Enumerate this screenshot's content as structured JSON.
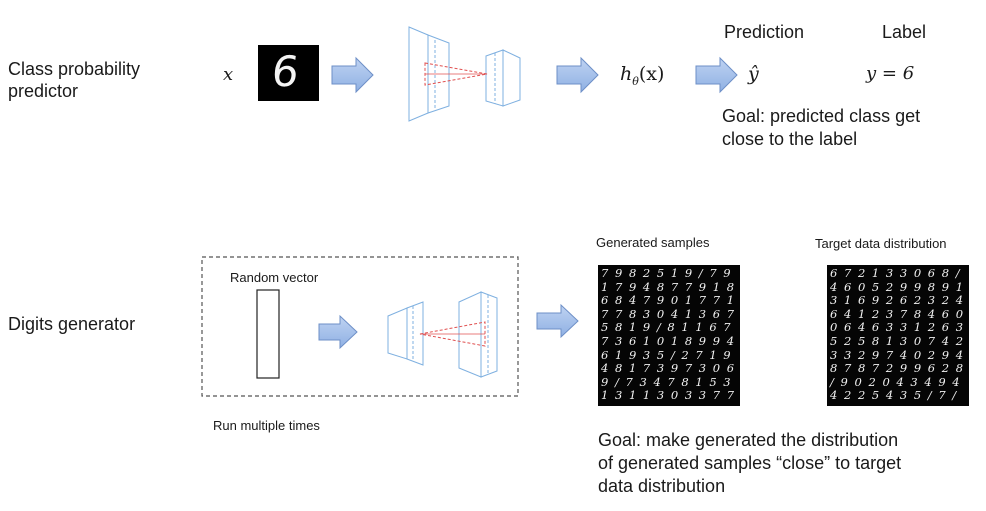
{
  "top": {
    "row_label": [
      "Class probability",
      "predictor"
    ],
    "input_symbol": "x",
    "input_digit": "6",
    "h_symbol": "h",
    "h_subscript": "θ",
    "h_arg": "(x)",
    "prediction_header": "Prediction",
    "prediction_symbol": "ŷ",
    "label_header": "Label",
    "label_value": "y = 6",
    "goal": [
      "Goal: predicted class get",
      "close to the label"
    ]
  },
  "bottom": {
    "row_label": "Digits generator",
    "random_vector_label": "Random vector",
    "run_label": "Run multiple times",
    "generated_title": "Generated samples",
    "target_title": "Target data distribution",
    "goal": [
      "Goal: make generated the distribution",
      "of generated samples “close” to target",
      "data distribution"
    ]
  },
  "generated_grid": [
    "7 9 8 2 5 1 9 / 7 9",
    "1 7 9 4 8 7 7 9 1 8",
    "6 8 4 7 9 0 1 7 7 1",
    "7 7 8 3 0 4 1 3 6 7",
    "5 8 1 9 / 8 1 1 6 7",
    "7 3 6 1 0 1 8 9 9 4",
    "6 1 9 3 5 / 2 7 1 9",
    "4 8 1 7 3 9 7 3 0 6",
    "9 / 7 3 4 7 8 1 5 3",
    "1 3 1 1 3 0 3 3 7 7"
  ],
  "target_grid": [
    "6 7 2 1 3 3 0 6 8 /",
    "4 6 0 5 2 9 9 8 9 1",
    "3 1 6 9 2 6 2 3 2 4",
    "6 4 1 2 3 7 8 4 6 0",
    "0 6 4 6 3 3 1 2 6 3",
    "5 2 5 8 1 3 0 7 4 2",
    "3 3 2 9 7 4 0 2 9 4",
    "8 7 8 7 2 9 9 6 2 8",
    "/ 9 0 2 0 4 3 4 9 4",
    "4 2 2 5 4 3 5 / 7 /"
  ],
  "colors": {
    "arrow_fill": "#a9c3ea",
    "arrow_stroke": "#6d8fc7",
    "net_stroke": "#7fb0e0",
    "red_dash": "#e05050",
    "box_dash": "#555555"
  }
}
